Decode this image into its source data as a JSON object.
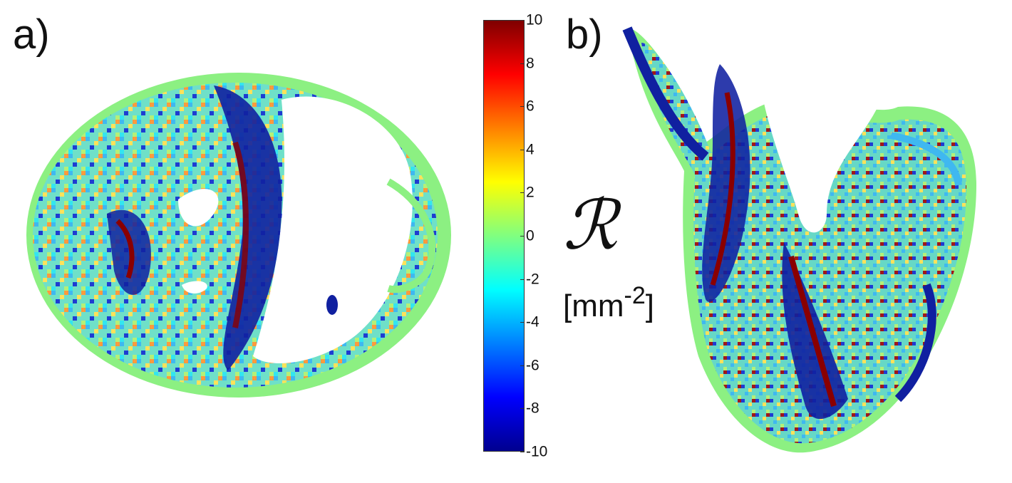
{
  "panels": {
    "a": {
      "label": "a)"
    },
    "b": {
      "label": "b)"
    }
  },
  "colorbar": {
    "ticks": [
      "10",
      "8",
      "6",
      "4",
      "2",
      "0",
      "-2",
      "-4",
      "-6",
      "-8",
      "-10"
    ],
    "min": -10,
    "max": 10,
    "colormap": [
      "#7f0000",
      "#ff0000",
      "#ff8000",
      "#ffff00",
      "#80ff80",
      "#00ffff",
      "#0080ff",
      "#0000ff",
      "#00008f"
    ]
  },
  "quantity": {
    "symbol": "ℛ",
    "unit_base": "[mm",
    "unit_exp": "-2",
    "unit_close": "]"
  }
}
